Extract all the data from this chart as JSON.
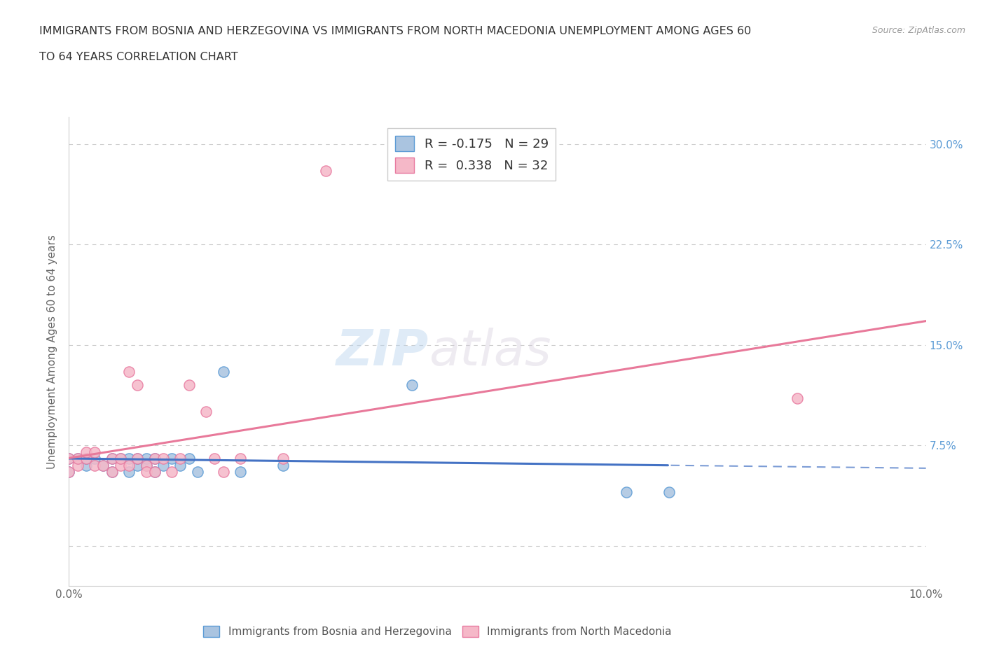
{
  "title_line1": "IMMIGRANTS FROM BOSNIA AND HERZEGOVINA VS IMMIGRANTS FROM NORTH MACEDONIA UNEMPLOYMENT AMONG AGES 60",
  "title_line2": "TO 64 YEARS CORRELATION CHART",
  "source": "Source: ZipAtlas.com",
  "ylabel": "Unemployment Among Ages 60 to 64 years",
  "xlim": [
    0.0,
    0.1
  ],
  "ylim": [
    -0.03,
    0.32
  ],
  "yticks": [
    0.0,
    0.075,
    0.15,
    0.225,
    0.3
  ],
  "ytick_labels_right": [
    "",
    "7.5%",
    "15.0%",
    "22.5%",
    "30.0%"
  ],
  "xticks": [
    0.0,
    0.025,
    0.05,
    0.075,
    0.1
  ],
  "xtick_labels": [
    "0.0%",
    "",
    "",
    "",
    "10.0%"
  ],
  "bosnia_color": "#aac4e0",
  "macedonia_color": "#f5b8c8",
  "bosnia_edge_color": "#5b9bd5",
  "macedonia_edge_color": "#e87aa0",
  "bosnia_line_color": "#4472c4",
  "macedonia_line_color": "#e8799a",
  "R_bosnia": -0.175,
  "N_bosnia": 29,
  "R_macedonia": 0.338,
  "N_macedonia": 32,
  "watermark_zip": "ZIP",
  "watermark_atlas": "atlas",
  "legend_label_bosnia": "Immigrants from Bosnia and Herzegovina",
  "legend_label_macedonia": "Immigrants from North Macedonia",
  "bosnia_x": [
    0.0,
    0.0,
    0.001,
    0.002,
    0.002,
    0.003,
    0.004,
    0.005,
    0.005,
    0.006,
    0.007,
    0.007,
    0.008,
    0.008,
    0.009,
    0.009,
    0.01,
    0.01,
    0.011,
    0.012,
    0.013,
    0.014,
    0.015,
    0.018,
    0.02,
    0.025,
    0.04,
    0.065,
    0.07
  ],
  "bosnia_y": [
    0.055,
    0.065,
    0.065,
    0.06,
    0.065,
    0.065,
    0.06,
    0.055,
    0.065,
    0.065,
    0.055,
    0.065,
    0.06,
    0.065,
    0.06,
    0.065,
    0.055,
    0.065,
    0.06,
    0.065,
    0.06,
    0.065,
    0.055,
    0.13,
    0.055,
    0.06,
    0.12,
    0.04,
    0.04
  ],
  "macedonia_x": [
    0.0,
    0.0,
    0.001,
    0.001,
    0.002,
    0.002,
    0.003,
    0.003,
    0.004,
    0.005,
    0.005,
    0.006,
    0.006,
    0.007,
    0.007,
    0.008,
    0.008,
    0.009,
    0.009,
    0.01,
    0.01,
    0.011,
    0.012,
    0.013,
    0.014,
    0.016,
    0.017,
    0.018,
    0.02,
    0.025,
    0.03,
    0.085
  ],
  "macedonia_y": [
    0.055,
    0.065,
    0.06,
    0.065,
    0.065,
    0.07,
    0.06,
    0.07,
    0.06,
    0.055,
    0.065,
    0.06,
    0.065,
    0.06,
    0.13,
    0.12,
    0.065,
    0.06,
    0.055,
    0.065,
    0.055,
    0.065,
    0.055,
    0.065,
    0.12,
    0.1,
    0.065,
    0.055,
    0.065,
    0.065,
    0.28,
    0.11
  ]
}
